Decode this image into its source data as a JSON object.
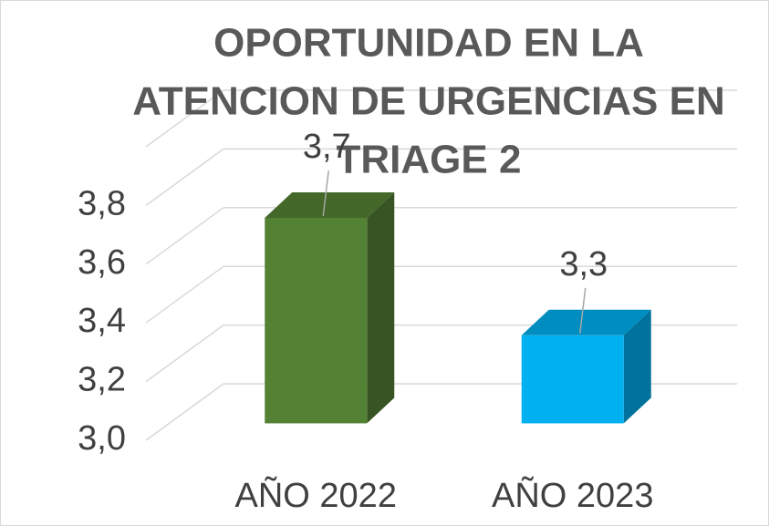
{
  "chart_data": {
    "type": "bar3d",
    "title": [
      "OPORTUNIDAD EN LA",
      "ATENCION DE URGENCIAS EN",
      "TRIAGE 2"
    ],
    "categories": [
      "AÑO 2022",
      "AÑO 2023"
    ],
    "values": [
      3.7,
      3.3
    ],
    "value_labels": [
      "3,7",
      "3,3"
    ],
    "colors": [
      "#548235",
      "#00b0f0"
    ],
    "ylim": [
      3.0,
      4.0
    ],
    "yticks": [
      {
        "value": 3.0,
        "label": "3,0"
      },
      {
        "value": 3.2,
        "label": "3,2"
      },
      {
        "value": 3.4,
        "label": "3,4"
      },
      {
        "value": 3.6,
        "label": "3,6"
      },
      {
        "value": 3.8,
        "label": "3,8"
      }
    ],
    "grid": true
  }
}
